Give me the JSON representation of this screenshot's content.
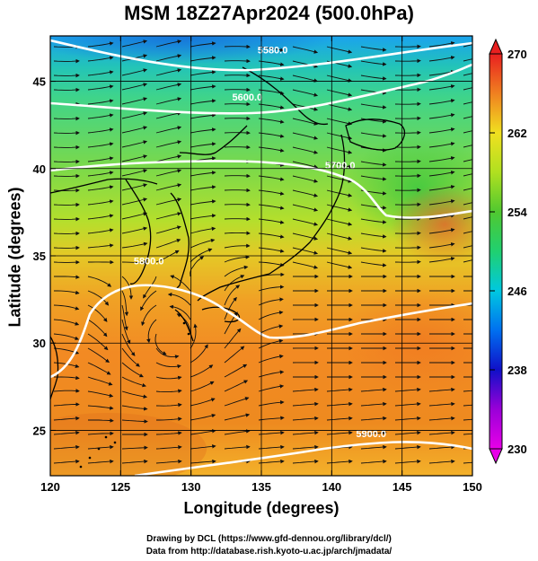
{
  "title": "MSM 18Z27Apr2024 (500.0hPa)",
  "map": {
    "xlabel": "Longitude (degrees)",
    "ylabel": "Latitude  (degrees)",
    "xlim": [
      120,
      150
    ],
    "ylim": [
      22.4,
      47.6
    ],
    "xticks": [
      "120",
      "125",
      "130",
      "135",
      "140",
      "145",
      "150"
    ],
    "yticks": [
      "25",
      "30",
      "35",
      "40",
      "45"
    ],
    "contour_labels": [
      {
        "text": "5580.0",
        "lon": 135.8,
        "lat": 46.6
      },
      {
        "text": "5600.0",
        "lon": 134.0,
        "lat": 43.9
      },
      {
        "text": "5700.0",
        "lon": 140.6,
        "lat": 40.0
      },
      {
        "text": "5800.0",
        "lon": 127.0,
        "lat": 34.5
      },
      {
        "text": "5900.0",
        "lon": 142.8,
        "lat": 24.6
      }
    ]
  },
  "colorbar": {
    "min": 230,
    "max": 270,
    "ticks": [
      "230",
      "238",
      "246",
      "254",
      "262",
      "270"
    ]
  },
  "credits": {
    "line1": "Drawing by DCL (https://www.gfd-dennou.org/library/dcl/)",
    "line2": "Data from http://database.rish.kyoto-u.ac.jp/arch/jmadata/"
  }
}
